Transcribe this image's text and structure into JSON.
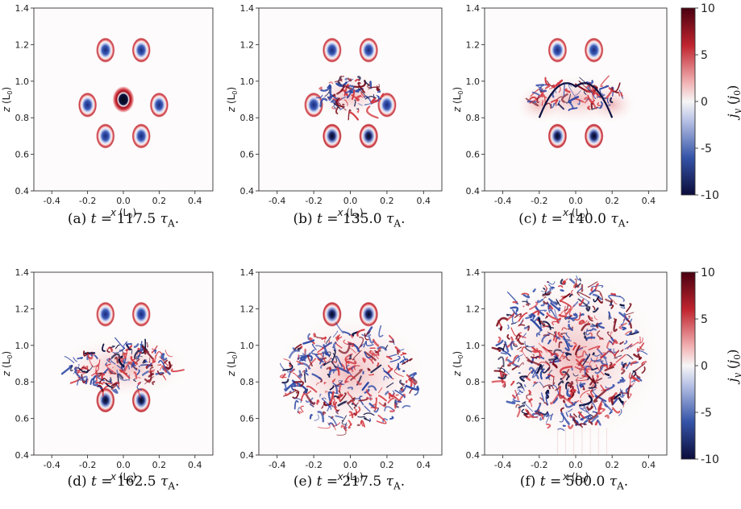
{
  "figure": {
    "x_axis_label": "x (L",
    "x_axis_label_sub": "0",
    "y_axis_label": "z (L",
    "y_axis_label_sub": "0",
    "x_ticks": [
      "-0.4",
      "-0.2",
      "0.0",
      "0.2",
      "0.4"
    ],
    "x_tick_values": [
      -0.4,
      -0.2,
      0.0,
      0.2,
      0.4
    ],
    "y_ticks": [
      "0.4",
      "0.6",
      "0.8",
      "1.0",
      "1.2",
      "1.4"
    ],
    "y_tick_values": [
      0.4,
      0.6,
      0.8,
      1.0,
      1.2,
      1.4
    ],
    "xlim": [
      -0.5,
      0.5
    ],
    "ylim": [
      0.4,
      1.4
    ]
  },
  "colorbar": {
    "label": "j",
    "label_sub": "y",
    "label_unit": " (j",
    "label_unit_sub": "0",
    "ticks": [
      "10",
      "5",
      "0",
      "-5",
      "-10"
    ],
    "tick_values": [
      10,
      5,
      0,
      -5,
      -10
    ],
    "range": [
      -10,
      10
    ],
    "colors": [
      "#b2182b",
      "#f7f7f7",
      "#2166ac"
    ],
    "dark_colors": [
      "#67001f",
      "#1a1a5e"
    ]
  },
  "panels": [
    {
      "id": "a",
      "label": "(a)",
      "time": "117.5",
      "stage": "rings"
    },
    {
      "id": "b",
      "label": "(b)",
      "time": "135.0",
      "stage": "center_breakup"
    },
    {
      "id": "c",
      "label": "(c)",
      "time": "140.0",
      "stage": "center_spread"
    },
    {
      "id": "d",
      "label": "(d)",
      "time": "162.5",
      "stage": "middle_turbulent"
    },
    {
      "id": "e",
      "label": "(e)",
      "time": "217.5",
      "stage": "mostly_turbulent"
    },
    {
      "id": "f",
      "label": "(f)",
      "time": "500.0",
      "stage": "fully_turbulent"
    }
  ],
  "caption": {
    "t_symbol": "t",
    "equals": " = ",
    "tau": "τ",
    "tau_sub": "A",
    "period": "."
  }
}
